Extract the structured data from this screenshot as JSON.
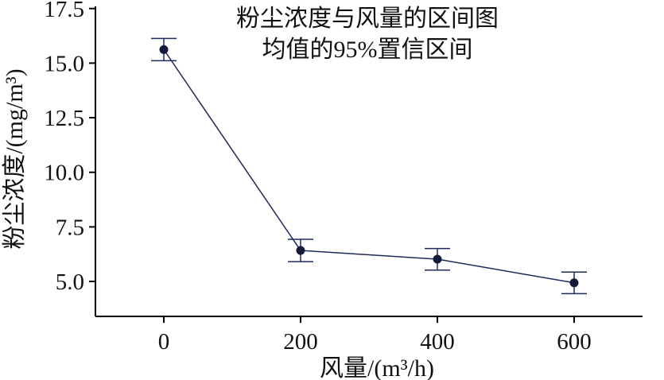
{
  "chart_data": {
    "type": "line",
    "title": "粉尘浓度与风量的区间图",
    "subtitle": "均值的95%置信区间",
    "xlabel": "风量/(m³/h)",
    "ylabel": "粉尘浓度/(mg/m³)",
    "x": [
      0,
      200,
      400,
      600
    ],
    "x_tick_labels": [
      "0",
      "200",
      "400",
      "600"
    ],
    "xlim": [
      -100,
      700
    ],
    "y_ticks": [
      5.0,
      7.5,
      10.0,
      12.5,
      15.0,
      17.5
    ],
    "y_tick_labels": [
      "5.0",
      "7.5",
      "10.0",
      "12.5",
      "15.0",
      "17.5"
    ],
    "ylim": [
      3.4,
      17.6
    ],
    "grid": false,
    "series": [
      {
        "values": [
          15.62,
          6.42,
          6.02,
          4.94
        ],
        "ci_lower": [
          15.11,
          5.91,
          5.52,
          4.44
        ],
        "ci_upper": [
          16.13,
          6.93,
          6.51,
          5.43
        ]
      }
    ],
    "colors": {
      "series": "#1f2a5c",
      "marker": "#141a3a",
      "axis": "#000000",
      "text": "#111111"
    }
  }
}
